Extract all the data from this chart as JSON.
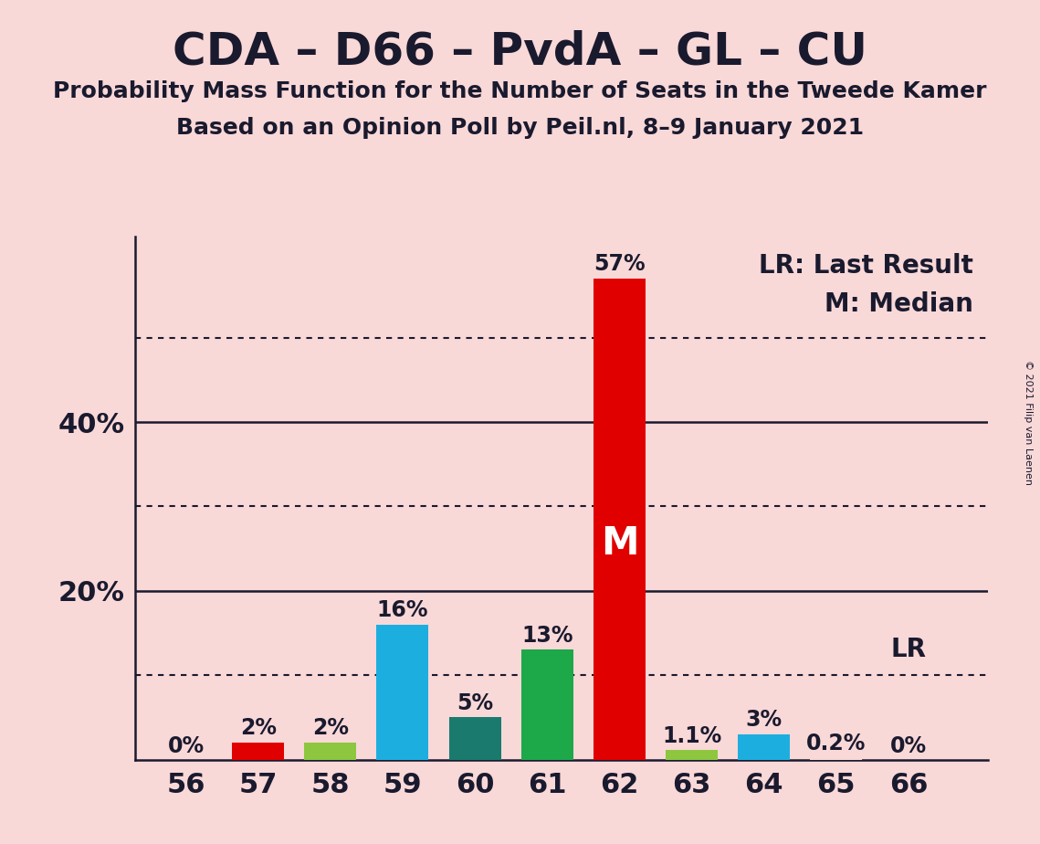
{
  "title": "CDA – D66 – PvdA – GL – CU",
  "subtitle1": "Probability Mass Function for the Number of Seats in the Tweede Kamer",
  "subtitle2": "Based on an Opinion Poll by Peil.nl, 8–9 January 2021",
  "copyright": "© 2021 Filip van Laenen",
  "seats": [
    56,
    57,
    58,
    59,
    60,
    61,
    62,
    63,
    64,
    65,
    66
  ],
  "values": [
    0.0,
    2.0,
    2.0,
    16.0,
    5.0,
    13.0,
    57.0,
    1.1,
    3.0,
    0.2,
    0.0
  ],
  "labels": [
    "0%",
    "2%",
    "2%",
    "16%",
    "5%",
    "13%",
    "57%",
    "1.1%",
    "3%",
    "0.2%",
    "0%"
  ],
  "colors": [
    "#f9d8d8",
    "#e00000",
    "#8dc63f",
    "#1daee0",
    "#1a7a6e",
    "#1da84a",
    "#e00000",
    "#8dc63f",
    "#1daee0",
    "#f9d8d8",
    "#f9d8d8"
  ],
  "median_seat": 62,
  "lr_seat": 66,
  "lr_label": "LR",
  "lr_note": "LR: Last Result",
  "median_note": "M: Median",
  "median_label": "M",
  "background_color": "#f9d8d8",
  "dotted_yticks": [
    10,
    30,
    50
  ],
  "solid_yticks": [
    20,
    40
  ],
  "labeled_yticks": [
    20,
    40
  ],
  "ylim": [
    0,
    62
  ],
  "title_fontsize": 36,
  "subtitle_fontsize": 18,
  "label_fontsize": 17,
  "tick_fontsize": 22,
  "note_fontsize": 20,
  "median_fontsize": 30,
  "bar_width": 0.72,
  "text_color": "#1a1a2e"
}
